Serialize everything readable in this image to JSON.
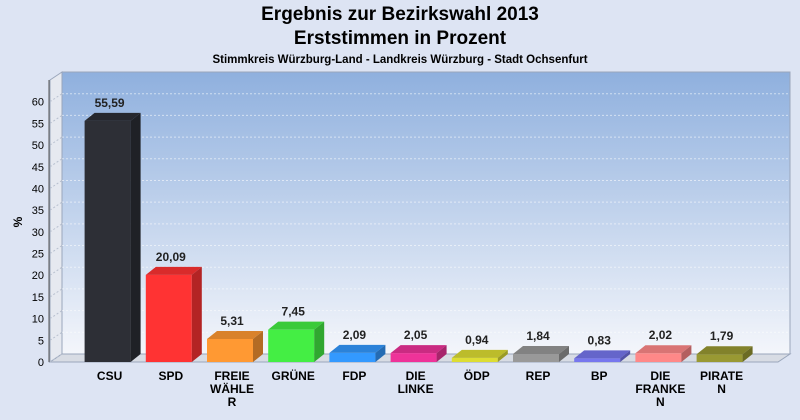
{
  "title": "Ergebnis zur Bezirkswahl 2013",
  "subtitle": "Erststimmen in Prozent",
  "subsubtitle": "Stimmkreis Würzburg-Land - Landkreis Würzburg - Stadt Ochsenfurt",
  "chart_data": {
    "type": "bar",
    "ylabel": "%",
    "ylim": [
      0,
      65
    ],
    "yticks": [
      0,
      5,
      10,
      15,
      20,
      25,
      30,
      35,
      40,
      45,
      50,
      55,
      60
    ],
    "grid": true,
    "categories": [
      "CSU",
      "SPD",
      "FREIE WÄHLE R",
      "GRÜNE",
      "FDP",
      "DIE LINKE",
      "ÖDP",
      "REP",
      "BP",
      "DIE FRANKE N",
      "PIRATE N"
    ],
    "category_display": [
      "CSU",
      "SPD",
      "FREIE\nWÄHLE\nR",
      "GRÜNE",
      "FDP",
      "DIE\nLINKE",
      "ÖDP",
      "REP",
      "BP",
      "DIE\nFRANKE\nN",
      "PIRATE\nN"
    ],
    "values": [
      55.59,
      20.09,
      5.31,
      7.45,
      2.09,
      2.05,
      0.94,
      1.84,
      0.83,
      2.02,
      1.79
    ],
    "value_labels": [
      "55,59",
      "20,09",
      "5,31",
      "7,45",
      "2,09",
      "2,05",
      "0,94",
      "1,84",
      "0,83",
      "2,02",
      "1,79"
    ],
    "colors": [
      "#2d2f36",
      "#ff3333",
      "#ff9933",
      "#44ee44",
      "#3399ff",
      "#ee3399",
      "#dddd33",
      "#999999",
      "#7777ee",
      "#ff8888",
      "#999933"
    ]
  }
}
